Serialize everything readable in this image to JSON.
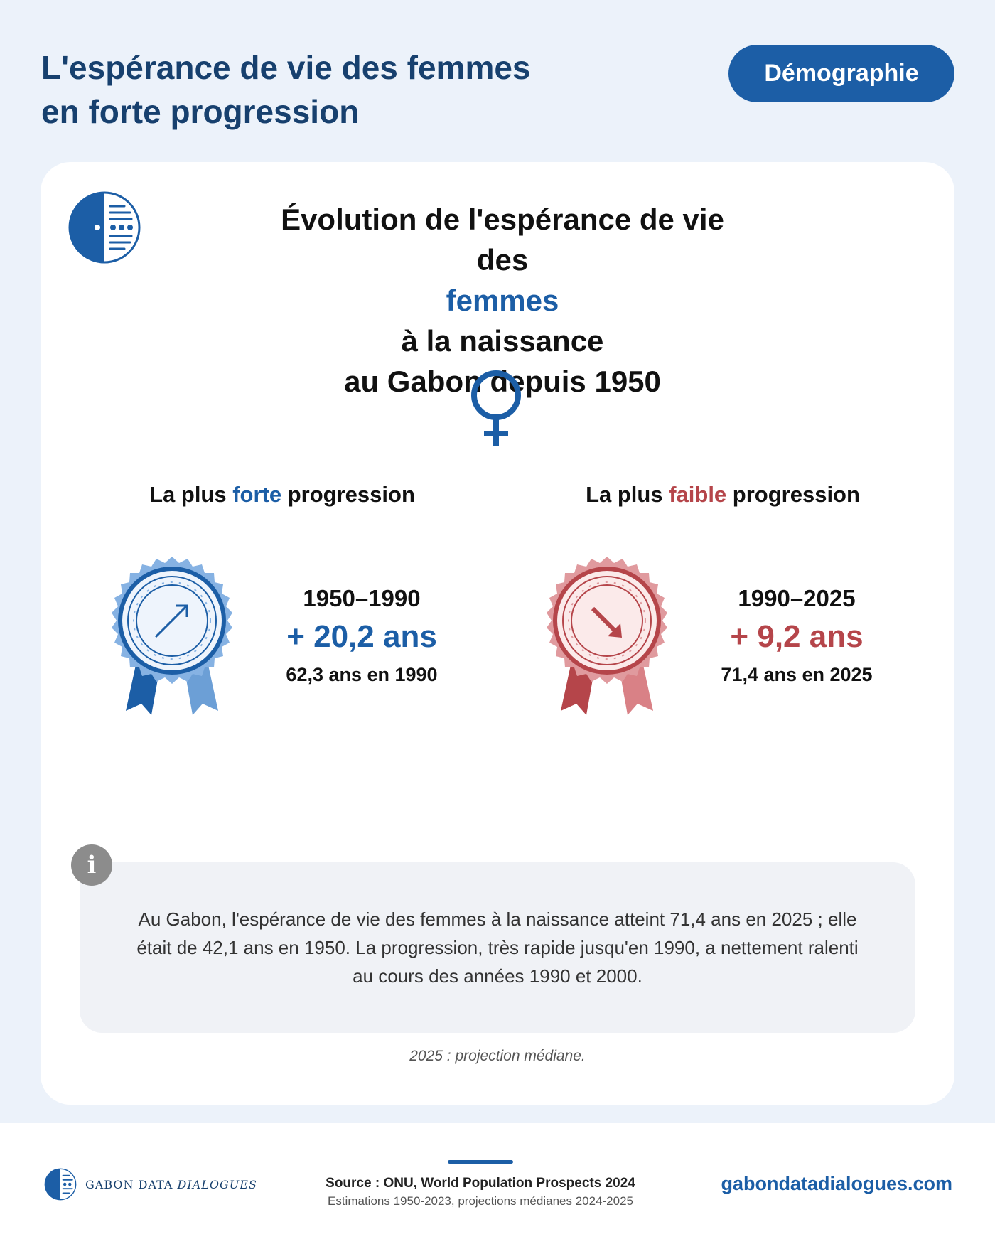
{
  "header": {
    "title_line1": "L'espérance de vie des femmes",
    "title_line2": "en forte progression",
    "tag": "Démographie"
  },
  "card": {
    "title_line1": "Évolution de l'espérance de vie",
    "title_line2_pre": "des ",
    "title_line2_highlight": "femmes",
    "title_line2_post": " à la naissance",
    "title_line3": "au Gabon depuis 1950",
    "left": {
      "title_pre": "La plus ",
      "title_highlight": "forte",
      "title_post": " progression",
      "period": "1950–1990",
      "gain": "+ 20,2 ans",
      "sub": "62,3 ans en 1990",
      "color": "#1c5ea6"
    },
    "right": {
      "title_pre": "La plus ",
      "title_highlight": "faible",
      "title_post": " progression",
      "period": "1990–2025",
      "gain": "+ 9,2 ans",
      "sub": "71,4 ans en 2025",
      "color": "#b5454a"
    },
    "info_icon": "i",
    "info_text": "Au Gabon, l'espérance de vie des femmes à la naissance atteint 71,4 ans en 2025 ; elle était de 42,1 ans en 1950. La progression, très rapide jusqu'en 1990, a nettement ralenti au cours des années 1990 et 2000.",
    "footnote": "2025 : projection médiane."
  },
  "footer": {
    "brand_main": "GABON DATA ",
    "brand_italic": "DIALOGUES",
    "source": "Source : ONU, World Population Prospects 2024",
    "estimates": "Estimations 1950-2023, projections médianes 2024-2025",
    "url": "gabondatadialogues.com"
  },
  "icons": {
    "logo": "gabon-data-dialogues-logo-icon",
    "venus": "venus-female-symbol-icon",
    "medal_up": "blue-medal-arrow-up-icon",
    "medal_down": "red-medal-arrow-down-icon",
    "info": "info-icon"
  }
}
